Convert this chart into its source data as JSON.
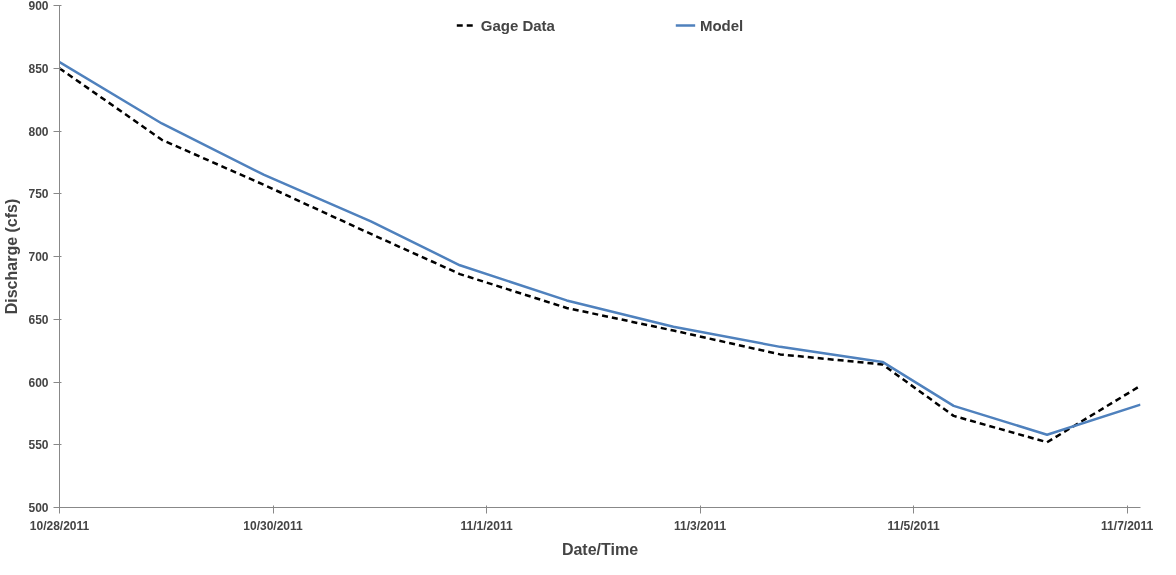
{
  "chart_data": {
    "type": "line",
    "xlabel": "Date/Time",
    "ylabel": "Discharge (cfs)",
    "x": [
      "2011-10-28T00:00",
      "2011-10-28T23:00",
      "2011-10-29T22:00",
      "2011-10-30T22:00",
      "2011-10-31T18:00",
      "2011-11-01T18:00",
      "2011-11-02T18:00",
      "2011-11-03T18:00",
      "2011-11-04T17:00",
      "2011-11-05T09:00",
      "2011-11-06T06:00",
      "2011-11-07T03:00"
    ],
    "series": [
      {
        "name": "Gage Data",
        "color": "#000000",
        "line_style": "dashed",
        "values": [
          850,
          793,
          757,
          718,
          686,
          659,
          641,
          622,
          614,
          573,
          552,
          597
        ]
      },
      {
        "name": "Model",
        "color": "#4f81bd",
        "line_style": "solid",
        "values": [
          855,
          806,
          765,
          728,
          693,
          665,
          644,
          628,
          616,
          581,
          558,
          582
        ]
      }
    ],
    "xlim": [
      "2011-10-28T00:00",
      "2011-11-07T03:00"
    ],
    "xticks": [
      {
        "value": "2011-10-28",
        "label": "10/28/2011"
      },
      {
        "value": "2011-10-30",
        "label": "10/30/2011"
      },
      {
        "value": "2011-11-01",
        "label": "11/1/2011"
      },
      {
        "value": "2011-11-03",
        "label": "11/3/2011"
      },
      {
        "value": "2011-11-05",
        "label": "11/5/2011"
      },
      {
        "value": "2011-11-07",
        "label": "11/7/2011"
      }
    ],
    "ylim": [
      500,
      900
    ],
    "yticks": [
      500,
      550,
      600,
      650,
      700,
      750,
      800,
      850,
      900
    ],
    "grid": false,
    "legend": "top",
    "marker": "none"
  }
}
